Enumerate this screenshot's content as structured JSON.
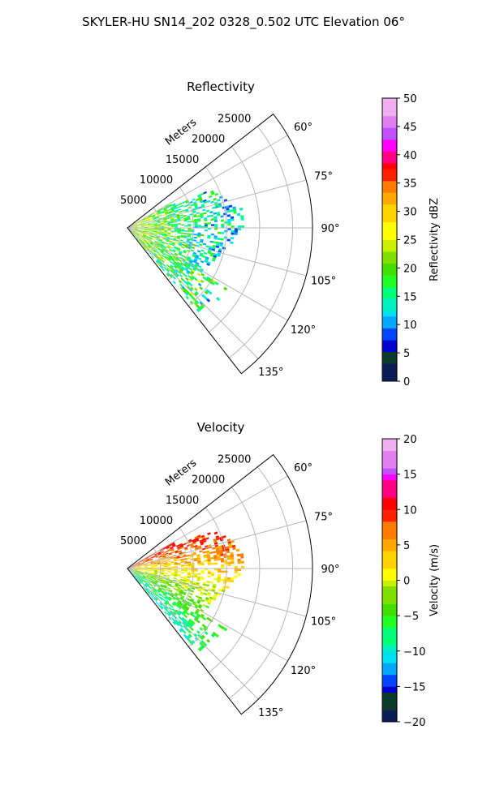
{
  "figure_title": "SKYLER-HU  SN14_202  0328_0.502 UTC Elevation 06°",
  "chart_data": [
    {
      "type": "polar-sector-heatmap",
      "title": "Reflectivity",
      "range_label": "Meters",
      "range_ticks": [
        5000,
        10000,
        15000,
        20000,
        25000
      ],
      "range_max": 28000,
      "azimuth_ticks": [
        "60°",
        "75°",
        "90°",
        "105°",
        "120°",
        "135°"
      ],
      "azimuth_range": [
        52,
        142
      ],
      "grid": true,
      "colorbar": {
        "label": "Reflectivity dBZ",
        "min": 0,
        "max": 50,
        "ticks": [
          "0",
          "5",
          "10",
          "15",
          "20",
          "25",
          "30",
          "35",
          "40",
          "45",
          "50"
        ]
      }
    },
    {
      "type": "polar-sector-heatmap",
      "title": "Velocity",
      "range_label": "Meters",
      "range_ticks": [
        5000,
        10000,
        15000,
        20000,
        25000
      ],
      "range_max": 28000,
      "azimuth_ticks": [
        "60°",
        "75°",
        "90°",
        "105°",
        "120°",
        "135°"
      ],
      "azimuth_range": [
        52,
        142
      ],
      "grid": true,
      "colorbar": {
        "label": "Velocity (m/s)",
        "min": -20,
        "max": 20,
        "ticks": [
          "−20",
          "−15",
          "−10",
          "−5",
          "0",
          "5",
          "10",
          "15",
          "20"
        ]
      }
    }
  ]
}
